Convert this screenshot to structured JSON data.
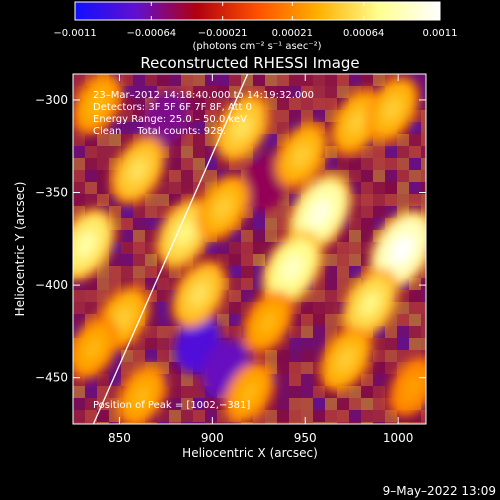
{
  "chart_data": {
    "type": "heatmap",
    "title": "Reconstructed RHESSI Image",
    "xlabel": "Heliocentric X (arcsec)",
    "ylabel": "Heliocentric Y (arcsec)",
    "xlim": [
      825,
      1015
    ],
    "ylim": [
      -475,
      -286
    ],
    "x_ticks": [
      850,
      900,
      950,
      1000
    ],
    "x_tick_labels": [
      "850",
      "900",
      "950",
      "1000"
    ],
    "y_ticks": [
      -300,
      -350,
      -400,
      -450
    ],
    "y_tick_labels": [
      "−300",
      "−350",
      "−400",
      "−450"
    ],
    "colorbar": {
      "range": [
        -0.0011,
        0.0011
      ],
      "ticks": [
        -0.0011,
        -0.00064,
        -0.00021,
        0.00021,
        0.00064,
        0.0011
      ],
      "tick_labels": [
        "−0.0011",
        "−0.00064",
        "−0.00021",
        "0.00021",
        "0.00064",
        "0.0011"
      ],
      "units_label": "(photons cm⁻² s⁻¹ asec⁻²)",
      "colors": [
        "#1010ff",
        "#6010d0",
        "#b00010",
        "#ff5000",
        "#ffb000",
        "#ffff90",
        "#ffffff"
      ]
    },
    "info_lines": [
      "23–Mar–2012 14:18:40.000 to 14:19:32.000",
      "Detectors: 3F 5F 6F 7F 8F, Att 0",
      "Energy Range: 25.0 – 50.0 keV",
      "Clean     Total counts: 928."
    ],
    "peak_label": "Position of Peak = [1002,−381]",
    "peak": [
      1002,
      -381
    ],
    "limb_line": [
      [
        836,
        -475
      ],
      [
        919,
        -286
      ]
    ],
    "bright_sources": [
      {
        "x": 958,
        "y": -361,
        "value": 0.001
      },
      {
        "x": 1002,
        "y": -381,
        "value": 0.0011
      },
      {
        "x": 943,
        "y": -391,
        "value": 0.0009
      },
      {
        "x": 832,
        "y": -378,
        "value": 0.0008
      },
      {
        "x": 985,
        "y": -410,
        "value": 0.0007
      },
      {
        "x": 860,
        "y": -338,
        "value": 0.0006
      },
      {
        "x": 885,
        "y": -372,
        "value": 0.0007
      },
      {
        "x": 893,
        "y": -405,
        "value": 0.0006
      },
      {
        "x": 916,
        "y": -315,
        "value": 0.0006
      },
      {
        "x": 906,
        "y": -358,
        "value": 0.0005
      },
      {
        "x": 948,
        "y": -330,
        "value": 0.0005
      },
      {
        "x": 978,
        "y": -312,
        "value": 0.0005
      },
      {
        "x": 997,
        "y": -305,
        "value": 0.0005
      },
      {
        "x": 838,
        "y": -302,
        "value": 0.0004
      },
      {
        "x": 852,
        "y": -418,
        "value": 0.0005
      },
      {
        "x": 836,
        "y": -434,
        "value": 0.0004
      },
      {
        "x": 972,
        "y": -440,
        "value": 0.0005
      },
      {
        "x": 920,
        "y": -458,
        "value": 0.0004
      },
      {
        "x": 862,
        "y": -460,
        "value": 0.0004
      },
      {
        "x": 1008,
        "y": -455,
        "value": 0.0003
      },
      {
        "x": 930,
        "y": -420,
        "value": 0.0004
      }
    ],
    "dark_sources": [
      {
        "x": 892,
        "y": -432,
        "value": -0.0008
      },
      {
        "x": 875,
        "y": -310,
        "value": -0.0006
      },
      {
        "x": 928,
        "y": -345,
        "value": -0.0005
      },
      {
        "x": 907,
        "y": -445,
        "value": -0.0007
      }
    ]
  },
  "footer": {
    "date_stamp": "9–May–2022 13:09"
  }
}
